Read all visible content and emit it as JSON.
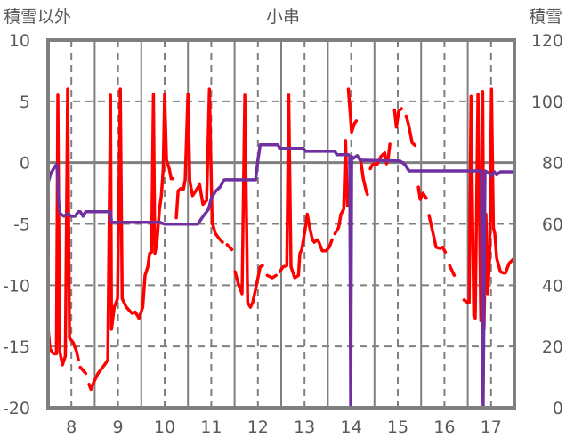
{
  "chart_data": {
    "type": "line",
    "title": "小串",
    "ylabel_left": "積雪以外",
    "ylabel_right": "積雪",
    "xlim": [
      7.5,
      17.5
    ],
    "ylim_left": [
      -20,
      10
    ],
    "ylim_right": [
      0,
      120
    ],
    "x_ticks": [
      "8",
      "9",
      "10",
      "11",
      "12",
      "13",
      "14",
      "15",
      "16",
      "17"
    ],
    "x_tick_values": [
      8,
      9,
      10,
      11,
      12,
      13,
      14,
      15,
      16,
      17
    ],
    "y_ticks_left": [
      "10",
      "5",
      "0",
      "-5",
      "-10",
      "-15",
      "-20"
    ],
    "y_tick_values_left": [
      10,
      5,
      0,
      -5,
      -10,
      -15,
      -20
    ],
    "y_ticks_right": [
      "120",
      "100",
      "80",
      "60",
      "40",
      "20",
      "0"
    ],
    "y_tick_values_right": [
      120,
      100,
      80,
      60,
      40,
      20,
      0
    ],
    "grid": true,
    "series": [
      {
        "name": "積雪以外",
        "axis": "left",
        "color": "#ff0000",
        "points": [
          [
            7.5,
            -13.5
          ],
          [
            7.54,
            -15.2
          ],
          [
            7.62,
            -15.6
          ],
          [
            7.68,
            -15.6
          ],
          [
            7.71,
            5.5
          ],
          [
            7.75,
            -15.4
          ],
          [
            7.81,
            -16.5
          ],
          [
            7.87,
            -15.8
          ],
          [
            7.92,
            6.0
          ],
          [
            7.96,
            -14.3
          ],
          [
            8.04,
            -14.7
          ],
          [
            8.11,
            -15.4
          ],
          [
            8.15,
            -16.1
          ],
          null,
          [
            8.19,
            -16.7
          ],
          [
            8.31,
            -17.2
          ],
          null,
          [
            8.38,
            -18.1
          ],
          [
            8.42,
            -18.5
          ],
          [
            8.46,
            -18.1
          ],
          [
            8.57,
            -17.2
          ],
          [
            8.73,
            -16.4
          ],
          [
            8.78,
            -16.1
          ],
          [
            8.84,
            5.5
          ],
          [
            8.86,
            -13.6
          ],
          [
            8.92,
            -11.8
          ],
          [
            8.99,
            -11.1
          ],
          [
            9.05,
            6.0
          ],
          [
            9.09,
            -11.1
          ],
          [
            9.18,
            -11.8
          ],
          [
            9.3,
            -12.3
          ],
          [
            9.37,
            -12.2
          ],
          [
            9.45,
            -12.7
          ],
          [
            9.53,
            -11.8
          ],
          [
            9.58,
            -9.2
          ],
          [
            9.64,
            -8.5
          ],
          [
            9.68,
            -7.4
          ],
          [
            9.72,
            -7.3
          ],
          [
            9.76,
            5.6
          ],
          [
            9.79,
            -7.4
          ],
          [
            9.83,
            -6.7
          ],
          [
            9.89,
            -3.8
          ],
          [
            9.93,
            -2.7
          ],
          [
            9.97,
            -0.5
          ],
          [
            10.0,
            5.6
          ],
          [
            10.04,
            0.2
          ],
          [
            10.1,
            -0.5
          ],
          [
            10.14,
            -1.3
          ],
          [
            10.18,
            -1.3
          ],
          null,
          [
            10.25,
            -4.5
          ],
          [
            10.29,
            -2.3
          ],
          [
            10.35,
            -2.1
          ],
          [
            10.4,
            -2.2
          ],
          [
            10.44,
            -1.4
          ],
          [
            10.5,
            5.6
          ],
          [
            10.54,
            -1.5
          ],
          [
            10.6,
            -2.7
          ],
          [
            10.67,
            -2.3
          ],
          [
            10.75,
            -1.8
          ],
          [
            10.82,
            -3.4
          ],
          [
            10.9,
            -3.1
          ],
          [
            10.96,
            6.0
          ],
          [
            11.02,
            -4.9
          ],
          [
            11.09,
            -5.8
          ],
          [
            11.17,
            -6.2
          ],
          [
            11.24,
            -6.5
          ],
          null,
          [
            11.34,
            -6.7
          ],
          [
            11.44,
            -7.1
          ],
          null,
          [
            11.51,
            -8.9
          ],
          [
            11.59,
            -10.0
          ],
          [
            11.66,
            -10.7
          ],
          [
            11.72,
            5.5
          ],
          [
            11.78,
            -11.4
          ],
          [
            11.84,
            -11.8
          ],
          [
            11.89,
            -11.4
          ],
          [
            11.97,
            -10.0
          ],
          [
            12.05,
            -8.5
          ],
          [
            12.1,
            -8.4
          ],
          null,
          [
            12.2,
            -9.2
          ],
          [
            12.31,
            -9.4
          ],
          [
            12.39,
            -9.2
          ],
          null,
          [
            12.47,
            -8.9
          ],
          [
            12.54,
            -8.5
          ],
          [
            12.62,
            -8.4
          ],
          [
            12.66,
            5.5
          ],
          [
            12.71,
            -8.5
          ],
          [
            12.79,
            -9.4
          ],
          [
            12.87,
            -9.2
          ],
          [
            12.9,
            -7.4
          ],
          [
            12.94,
            -7.1
          ],
          [
            13.02,
            -5.3
          ],
          [
            13.06,
            -4.2
          ],
          [
            13.11,
            -5.3
          ],
          [
            13.17,
            -6.3
          ],
          [
            13.21,
            -6.5
          ],
          [
            13.27,
            -6.3
          ],
          [
            13.31,
            -6.5
          ],
          [
            13.38,
            -7.2
          ],
          [
            13.46,
            -7.2
          ],
          [
            13.53,
            -6.9
          ],
          [
            13.59,
            -6.3
          ],
          null,
          [
            13.65,
            -5.8
          ],
          [
            13.73,
            -5.3
          ],
          [
            13.78,
            -4.2
          ],
          [
            13.84,
            -3.8
          ],
          [
            13.88,
            1.8
          ],
          [
            13.92,
            -3.5
          ],
          null,
          [
            13.94,
            6.0
          ],
          [
            14.01,
            2.5
          ],
          [
            14.07,
            3.2
          ],
          [
            14.11,
            3.4
          ],
          null,
          [
            14.2,
            0.3
          ],
          [
            14.26,
            -1.3
          ],
          [
            14.32,
            -2.3
          ],
          [
            14.35,
            -2.6
          ],
          null,
          [
            14.41,
            -0.5
          ],
          [
            14.45,
            -0.2
          ],
          [
            14.49,
            -0.1
          ],
          [
            14.55,
            -0.2
          ],
          [
            14.6,
            0.2
          ],
          [
            14.64,
            0.5
          ],
          [
            14.72,
            0.8
          ],
          [
            14.76,
            -0.1
          ],
          [
            14.79,
            0.2
          ],
          [
            14.83,
            1.5
          ],
          null,
          [
            14.93,
            4.3
          ],
          [
            14.97,
            2.9
          ],
          [
            15.02,
            4.2
          ],
          [
            15.08,
            4.4
          ],
          null,
          [
            15.18,
            3.8
          ],
          [
            15.23,
            3.1
          ],
          [
            15.31,
            1.6
          ],
          [
            15.37,
            1.4
          ],
          null,
          [
            15.44,
            -2.0
          ],
          [
            15.48,
            -3.0
          ],
          [
            15.54,
            -2.5
          ],
          [
            15.61,
            -2.9
          ],
          null,
          [
            15.67,
            -4.3
          ],
          [
            15.77,
            -6.0
          ],
          [
            15.82,
            -6.9
          ],
          [
            15.9,
            -7.0
          ],
          [
            15.96,
            -6.9
          ],
          [
            16.02,
            -7.3
          ],
          null,
          [
            16.11,
            -8.4
          ],
          [
            16.21,
            -9.2
          ],
          null,
          [
            16.42,
            -11.2
          ],
          [
            16.49,
            -11.4
          ],
          [
            16.53,
            -11.4
          ],
          [
            16.57,
            5.4
          ],
          [
            16.63,
            -12.5
          ],
          [
            16.66,
            -12.7
          ],
          [
            16.72,
            5.6
          ],
          [
            16.78,
            -12.9
          ],
          [
            16.82,
            5.8
          ],
          [
            16.85,
            -13.6
          ],
          [
            16.89,
            -4.2
          ],
          [
            16.93,
            -10.7
          ],
          [
            16.97,
            -7.8
          ],
          [
            17.01,
            6.0
          ],
          [
            17.05,
            -5.3
          ],
          [
            17.08,
            -5.8
          ],
          [
            17.12,
            -7.8
          ],
          [
            17.2,
            -8.9
          ],
          [
            17.27,
            -9.0
          ],
          [
            17.31,
            -9.0
          ],
          [
            17.39,
            -8.2
          ],
          [
            17.5,
            -7.8
          ]
        ]
      },
      {
        "name": "積雪",
        "axis": "right",
        "color": "#7030a0",
        "points": [
          [
            7.5,
            73.5
          ],
          [
            7.56,
            76.5
          ],
          [
            7.65,
            78.8
          ],
          [
            7.69,
            79.4
          ],
          [
            7.73,
            66.3
          ],
          [
            7.76,
            63.4
          ],
          [
            7.84,
            62.5
          ],
          [
            7.92,
            63.4
          ],
          [
            8.0,
            62.5
          ],
          [
            8.08,
            62.5
          ],
          [
            8.15,
            64
          ],
          [
            8.19,
            64
          ],
          [
            8.25,
            62.5
          ],
          [
            8.31,
            64
          ],
          [
            8.84,
            64
          ],
          [
            8.86,
            60.5
          ],
          [
            9.9,
            60.5
          ],
          [
            10.0,
            59.9
          ],
          [
            10.71,
            59.9
          ],
          [
            10.84,
            62.8
          ],
          [
            10.94,
            64.8
          ],
          [
            11.0,
            68.3
          ],
          [
            11.09,
            70.6
          ],
          [
            11.19,
            72.1
          ],
          [
            11.28,
            74.4
          ],
          [
            11.95,
            74.4
          ],
          [
            12.0,
            80.8
          ],
          [
            12.05,
            85.8
          ],
          [
            12.43,
            85.8
          ],
          [
            12.47,
            84.6
          ],
          [
            12.98,
            84.6
          ],
          [
            13.02,
            83.7
          ],
          [
            13.65,
            83.7
          ],
          [
            13.69,
            82.6
          ],
          [
            13.94,
            82.6
          ],
          [
            13.97,
            82
          ],
          [
            13.99,
            0
          ],
          [
            14.01,
            82
          ],
          [
            14.05,
            81.4
          ],
          [
            14.13,
            82.3
          ],
          [
            14.19,
            80.8
          ],
          [
            15.05,
            80.5
          ],
          [
            15.15,
            79.4
          ],
          [
            15.24,
            77.3
          ],
          [
            16.79,
            77.3
          ],
          [
            16.83,
            0
          ],
          [
            16.87,
            77.3
          ],
          [
            16.96,
            76.5
          ],
          [
            17.01,
            75.6
          ],
          [
            17.07,
            77
          ],
          [
            17.12,
            76
          ],
          [
            17.2,
            77
          ],
          [
            17.5,
            77
          ]
        ]
      }
    ]
  }
}
